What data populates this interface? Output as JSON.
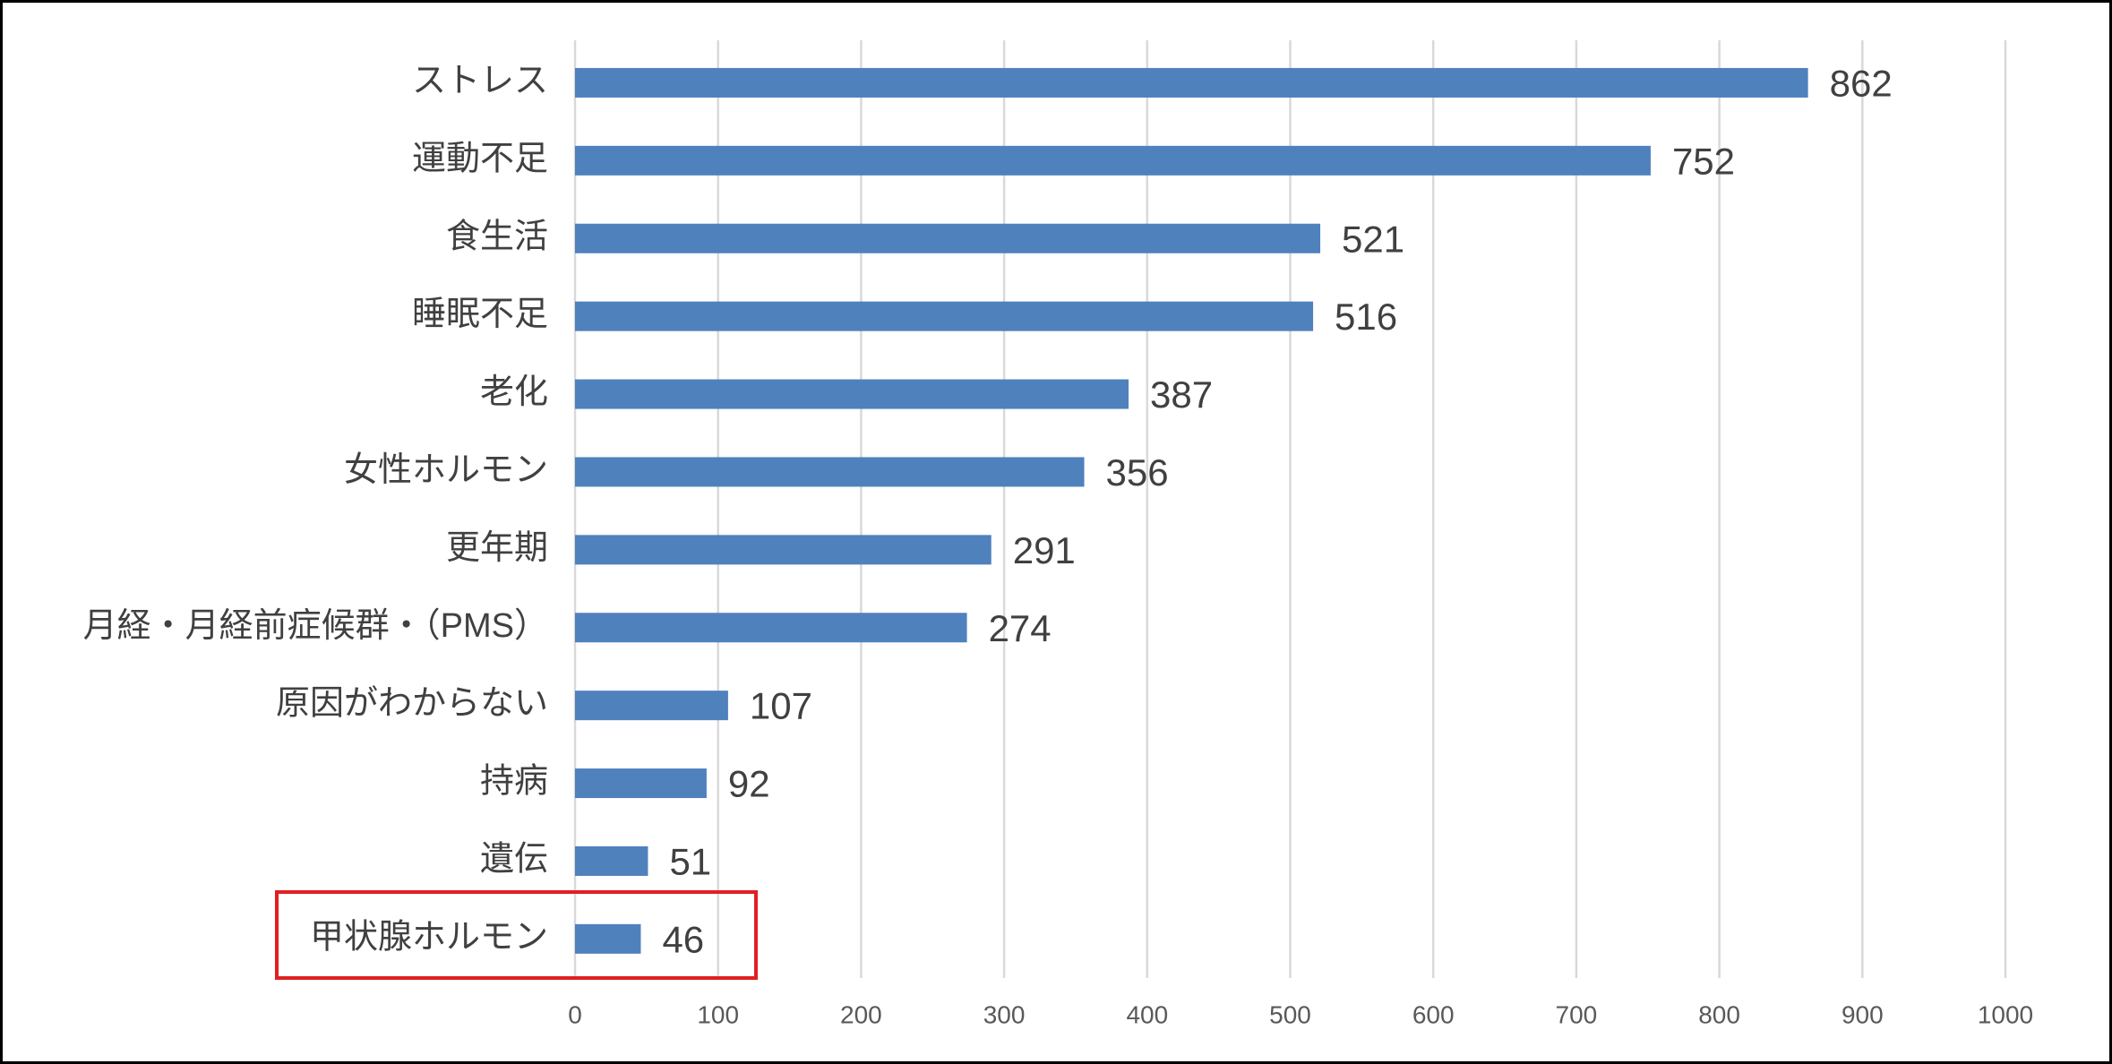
{
  "chart_data": {
    "type": "bar",
    "orientation": "horizontal",
    "categories": [
      "ストレス",
      "運動不足",
      "食生活",
      "睡眠不足",
      "老化",
      "女性ホルモン",
      "更年期",
      "月経・月経前症候群・（PMS）",
      "原因がわからない",
      "持病",
      "遺伝",
      "甲状腺ホルモン"
    ],
    "values": [
      862,
      752,
      521,
      516,
      387,
      356,
      291,
      274,
      107,
      92,
      51,
      46
    ],
    "color": "#4f81bd",
    "xlim": [
      0,
      1000
    ],
    "xticks": [
      0,
      100,
      200,
      300,
      400,
      500,
      600,
      700,
      800,
      900,
      1000
    ],
    "grid": true
  }
}
